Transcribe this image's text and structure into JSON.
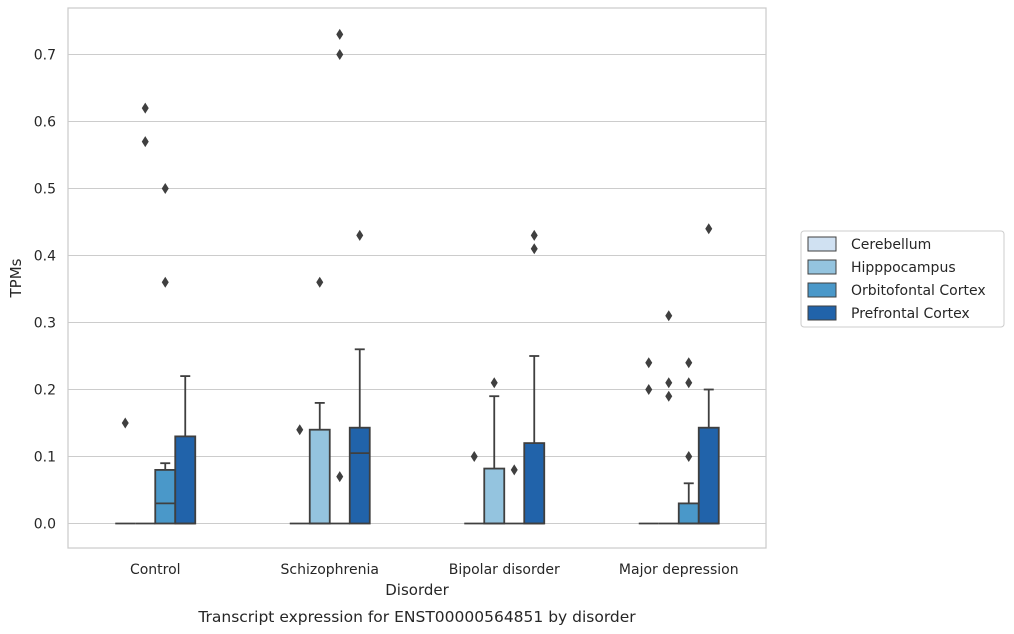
{
  "chart_data": {
    "type": "box",
    "caption": "Transcript expression for ENST00000564851 by disorder",
    "xlabel": "Disorder",
    "ylabel": "TPMs",
    "ylim": [
      -0.035,
      0.77
    ],
    "yticks": [
      0.0,
      0.1,
      0.2,
      0.3,
      0.4,
      0.5,
      0.6,
      0.7
    ],
    "ytick_labels": [
      "0.0",
      "0.1",
      "0.2",
      "0.3",
      "0.4",
      "0.5",
      "0.6",
      "0.7"
    ],
    "grid": "horizontal",
    "legend_placement": "outside-right",
    "categories": [
      "Control",
      "Schizophrenia",
      "Bipolar disorder",
      "Major depression"
    ],
    "series": [
      {
        "name": "Cerebellum",
        "color": "#d0e1f2",
        "boxes": [
          {
            "q1": 0,
            "median": 0,
            "q3": 0,
            "whislo": 0,
            "whishi": 0,
            "fliers": [
              0.15
            ]
          },
          {
            "q1": 0,
            "median": 0,
            "q3": 0,
            "whislo": 0,
            "whishi": 0,
            "fliers": [
              0.14
            ]
          },
          {
            "q1": 0,
            "median": 0,
            "q3": 0,
            "whislo": 0,
            "whishi": 0,
            "fliers": [
              0.1
            ]
          },
          {
            "q1": 0,
            "median": 0,
            "q3": 0,
            "whislo": 0,
            "whishi": 0,
            "fliers": [
              0.24,
              0.2
            ]
          }
        ]
      },
      {
        "name": "Hipppocampus",
        "color": "#94c4df",
        "boxes": [
          {
            "q1": 0,
            "median": 0,
            "q3": 0,
            "whislo": 0,
            "whishi": 0,
            "fliers": [
              0.62,
              0.57
            ]
          },
          {
            "q1": 0,
            "median": 0,
            "q3": 0.14,
            "whislo": 0,
            "whishi": 0.18,
            "fliers": [
              0.36
            ]
          },
          {
            "q1": 0,
            "median": 0,
            "q3": 0.082,
            "whislo": 0,
            "whishi": 0.19,
            "fliers": [
              0.21
            ]
          },
          {
            "q1": 0,
            "median": 0,
            "q3": 0,
            "whislo": 0,
            "whishi": 0,
            "fliers": [
              0.31,
              0.21,
              0.19
            ]
          }
        ]
      },
      {
        "name": "Orbitofontal Cortex",
        "color": "#4a98c9",
        "boxes": [
          {
            "q1": 0,
            "median": 0.03,
            "q3": 0.08,
            "whislo": 0,
            "whishi": 0.09,
            "fliers": [
              0.5,
              0.36
            ]
          },
          {
            "q1": 0,
            "median": 0,
            "q3": 0,
            "whislo": 0,
            "whishi": 0,
            "fliers": [
              0.73,
              0.7,
              0.07
            ]
          },
          {
            "q1": 0,
            "median": 0,
            "q3": 0,
            "whislo": 0,
            "whishi": 0,
            "fliers": [
              0.08
            ]
          },
          {
            "q1": 0,
            "median": 0,
            "q3": 0.03,
            "whislo": 0,
            "whishi": 0.06,
            "fliers": [
              0.24,
              0.21,
              0.1
            ]
          }
        ]
      },
      {
        "name": "Prefrontal Cortex",
        "color": "#2163aa",
        "boxes": [
          {
            "q1": 0,
            "median": 0,
            "q3": 0.13,
            "whislo": 0,
            "whishi": 0.22,
            "fliers": []
          },
          {
            "q1": 0,
            "median": 0.105,
            "q3": 0.143,
            "whislo": 0,
            "whishi": 0.26,
            "fliers": [
              0.43
            ]
          },
          {
            "q1": 0,
            "median": 0,
            "q3": 0.12,
            "whislo": 0,
            "whishi": 0.25,
            "fliers": [
              0.43,
              0.41
            ]
          },
          {
            "q1": 0,
            "median": 0,
            "q3": 0.143,
            "whislo": 0,
            "whishi": 0.2,
            "fliers": [
              0.44
            ]
          }
        ]
      }
    ]
  }
}
